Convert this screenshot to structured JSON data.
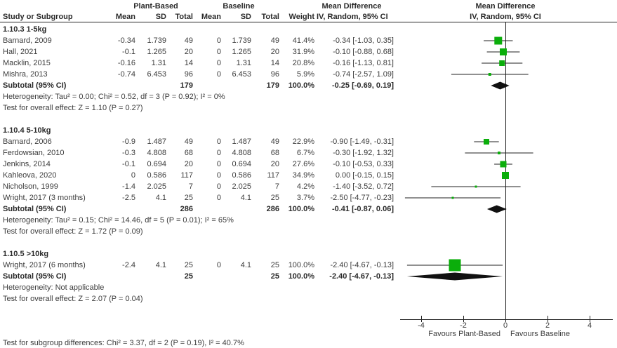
{
  "header": {
    "study": "Study or Subgroup",
    "plant_based": "Plant-Based",
    "baseline": "Baseline",
    "mean": "Mean",
    "sd": "SD",
    "total": "Total",
    "weight": "Weight",
    "mean_difference": "Mean Difference",
    "method": "IV, Random, 95% CI"
  },
  "footer": {
    "text": "Test for subgroup differences: Chi² = 3.37, df = 2 (P = 0.19), I² = 40.7%"
  },
  "colors": {
    "marker_green": "#0BAE0B",
    "diamond_black": "#111111",
    "line": "#262626"
  },
  "chart_data": {
    "type": "forest",
    "title": "Mean Difference  IV, Random, 95% CI",
    "x_axis": {
      "ticks": [
        -4,
        -2,
        0,
        2,
        4
      ],
      "range": [
        -5,
        5.1
      ],
      "label_left": "Favours Plant-Based",
      "label_right": "Favours Baseline"
    },
    "groups": [
      {
        "title": "1.10.3 1-5kg",
        "studies": [
          {
            "label": "Barnard, 2009",
            "pb_mean": "-0.34",
            "pb_sd": "1.739",
            "pb_total": "49",
            "bl_mean": "0",
            "bl_sd": "1.739",
            "bl_total": "49",
            "weight": "41.4%",
            "ci_text": "-0.34 [-1.03, 0.35]",
            "est": -0.34,
            "lo": -1.03,
            "hi": 0.35,
            "weight_pct": 41.4
          },
          {
            "label": "Hall, 2021",
            "pb_mean": "-0.1",
            "pb_sd": "1.265",
            "pb_total": "20",
            "bl_mean": "0",
            "bl_sd": "1.265",
            "bl_total": "20",
            "weight": "31.9%",
            "ci_text": "-0.10 [-0.88, 0.68]",
            "est": -0.1,
            "lo": -0.88,
            "hi": 0.68,
            "weight_pct": 31.9
          },
          {
            "label": "Macklin, 2015",
            "pb_mean": "-0.16",
            "pb_sd": "1.31",
            "pb_total": "14",
            "bl_mean": "0",
            "bl_sd": "1.31",
            "bl_total": "14",
            "weight": "20.8%",
            "ci_text": "-0.16 [-1.13, 0.81]",
            "est": -0.16,
            "lo": -1.13,
            "hi": 0.81,
            "weight_pct": 20.8
          },
          {
            "label": "Mishra, 2013",
            "pb_mean": "-0.74",
            "pb_sd": "6.453",
            "pb_total": "96",
            "bl_mean": "0",
            "bl_sd": "6.453",
            "bl_total": "96",
            "weight": "5.9%",
            "ci_text": "-0.74 [-2.57, 1.09]",
            "est": -0.74,
            "lo": -2.57,
            "hi": 1.09,
            "weight_pct": 5.9
          }
        ],
        "subtotal": {
          "label": "Subtotal (95% CI)",
          "pb_total": "179",
          "bl_total": "179",
          "weight": "100.0%",
          "ci_text": "-0.25 [-0.69, 0.19]",
          "est": -0.25,
          "lo": -0.69,
          "hi": 0.19
        },
        "heterogeneity": "Heterogeneity: Tau² = 0.00; Chi² = 0.52, df = 3 (P = 0.92); I² = 0%",
        "overall_effect": "Test for overall effect: Z = 1.10 (P = 0.27)"
      },
      {
        "title": "1.10.4 5-10kg",
        "studies": [
          {
            "label": "Barnard, 2006",
            "pb_mean": "-0.9",
            "pb_sd": "1.487",
            "pb_total": "49",
            "bl_mean": "0",
            "bl_sd": "1.487",
            "bl_total": "49",
            "weight": "22.9%",
            "ci_text": "-0.90 [-1.49, -0.31]",
            "est": -0.9,
            "lo": -1.49,
            "hi": -0.31,
            "weight_pct": 22.9
          },
          {
            "label": "Ferdowsian, 2010",
            "pb_mean": "-0.3",
            "pb_sd": "4.808",
            "pb_total": "68",
            "bl_mean": "0",
            "bl_sd": "4.808",
            "bl_total": "68",
            "weight": "6.7%",
            "ci_text": "-0.30 [-1.92, 1.32]",
            "est": -0.3,
            "lo": -1.92,
            "hi": 1.32,
            "weight_pct": 6.7
          },
          {
            "label": "Jenkins, 2014",
            "pb_mean": "-0.1",
            "pb_sd": "0.694",
            "pb_total": "20",
            "bl_mean": "0",
            "bl_sd": "0.694",
            "bl_total": "20",
            "weight": "27.6%",
            "ci_text": "-0.10 [-0.53, 0.33]",
            "est": -0.1,
            "lo": -0.53,
            "hi": 0.33,
            "weight_pct": 27.6
          },
          {
            "label": "Kahleova, 2020",
            "pb_mean": "0",
            "pb_sd": "0.586",
            "pb_total": "117",
            "bl_mean": "0",
            "bl_sd": "0.586",
            "bl_total": "117",
            "weight": "34.9%",
            "ci_text": "0.00 [-0.15, 0.15]",
            "est": 0.0,
            "lo": -0.15,
            "hi": 0.15,
            "weight_pct": 34.9
          },
          {
            "label": "Nicholson, 1999",
            "pb_mean": "-1.4",
            "pb_sd": "2.025",
            "pb_total": "7",
            "bl_mean": "0",
            "bl_sd": "2.025",
            "bl_total": "7",
            "weight": "4.2%",
            "ci_text": "-1.40 [-3.52, 0.72]",
            "est": -1.4,
            "lo": -3.52,
            "hi": 0.72,
            "weight_pct": 4.2
          },
          {
            "label": "Wright, 2017 (3 months)",
            "pb_mean": "-2.5",
            "pb_sd": "4.1",
            "pb_total": "25",
            "bl_mean": "0",
            "bl_sd": "4.1",
            "bl_total": "25",
            "weight": "3.7%",
            "ci_text": "-2.50 [-4.77, -0.23]",
            "est": -2.5,
            "lo": -4.77,
            "hi": -0.23,
            "weight_pct": 3.7
          }
        ],
        "subtotal": {
          "label": "Subtotal (95% CI)",
          "pb_total": "286",
          "bl_total": "286",
          "weight": "100.0%",
          "ci_text": "-0.41 [-0.87, 0.06]",
          "est": -0.41,
          "lo": -0.87,
          "hi": 0.06
        },
        "heterogeneity": "Heterogeneity: Tau² = 0.15; Chi² = 14.46, df = 5 (P = 0.01); I² = 65%",
        "overall_effect": "Test for overall effect: Z = 1.72 (P = 0.09)"
      },
      {
        "title": "1.10.5 >10kg",
        "studies": [
          {
            "label": "Wright, 2017 (6 months)",
            "pb_mean": "-2.4",
            "pb_sd": "4.1",
            "pb_total": "25",
            "bl_mean": "0",
            "bl_sd": "4.1",
            "bl_total": "25",
            "weight": "100.0%",
            "ci_text": "-2.40 [-4.67, -0.13]",
            "est": -2.4,
            "lo": -4.67,
            "hi": -0.13,
            "weight_pct": 100.0
          }
        ],
        "subtotal": {
          "label": "Subtotal (95% CI)",
          "pb_total": "25",
          "bl_total": "25",
          "weight": "100.0%",
          "ci_text": "-2.40 [-4.67, -0.13]",
          "est": -2.4,
          "lo": -4.67,
          "hi": -0.13
        },
        "heterogeneity": "Heterogeneity: Not applicable",
        "overall_effect": "Test for overall effect: Z = 2.07 (P = 0.04)"
      }
    ]
  }
}
